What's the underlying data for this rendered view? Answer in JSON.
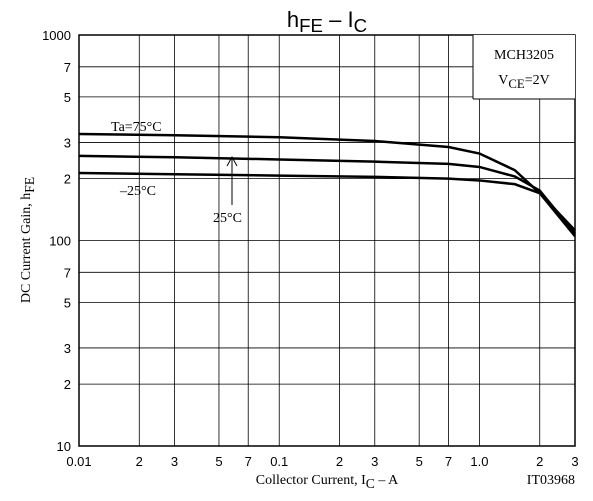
{
  "chart_data": {
    "type": "line",
    "title": [
      "h",
      "FE",
      " – I",
      "C"
    ],
    "xlabel": [
      "Collector Current, I",
      "C",
      " – A"
    ],
    "ylabel": [
      "DC Current Gain, h",
      "FE"
    ],
    "annotations": {
      "device": "MCH3205",
      "condition": [
        "V",
        "CE",
        "=2V"
      ],
      "code": "IT03968"
    },
    "log_x": true,
    "log_y": true,
    "grid": true,
    "xlim": [
      0.01,
      3
    ],
    "ylim": [
      10,
      1000
    ],
    "xticks": [
      0.01,
      {
        "value": 0.02,
        "label": "2"
      },
      {
        "value": 0.03,
        "label": "3"
      },
      {
        "value": 0.05,
        "label": "5"
      },
      {
        "value": 0.07,
        "label": "7"
      },
      0.1,
      {
        "value": 0.2,
        "label": "2"
      },
      {
        "value": 0.3,
        "label": "3"
      },
      {
        "value": 0.5,
        "label": "5"
      },
      {
        "value": 0.7,
        "label": "7"
      },
      {
        "value": 1,
        "label": "1.0"
      },
      2,
      3
    ],
    "yticks": [
      10,
      {
        "value": 20,
        "label": "2"
      },
      {
        "value": 30,
        "label": "3"
      },
      {
        "value": 50,
        "label": "5"
      },
      {
        "value": 70,
        "label": "7"
      },
      100,
      {
        "value": 200,
        "label": "2"
      },
      {
        "value": 300,
        "label": "3"
      },
      {
        "value": 500,
        "label": "5"
      },
      {
        "value": 700,
        "label": "7"
      },
      1000
    ],
    "x": [
      0.01,
      0.03,
      0.1,
      0.3,
      0.7,
      1,
      1.5,
      2,
      3
    ],
    "series": [
      {
        "name": "Ta=75°C",
        "color": "#000000",
        "values": [
          330,
          325,
          318,
          305,
          285,
          265,
          220,
          170,
          105
        ]
      },
      {
        "name": "25°C",
        "color": "#000000",
        "values": [
          258,
          254,
          248,
          242,
          236,
          228,
          205,
          175,
          108
        ]
      },
      {
        "name": "–25°C",
        "color": "#000000",
        "values": [
          213,
          210,
          207,
          204,
          200,
          196,
          188,
          170,
          112
        ]
      }
    ]
  }
}
